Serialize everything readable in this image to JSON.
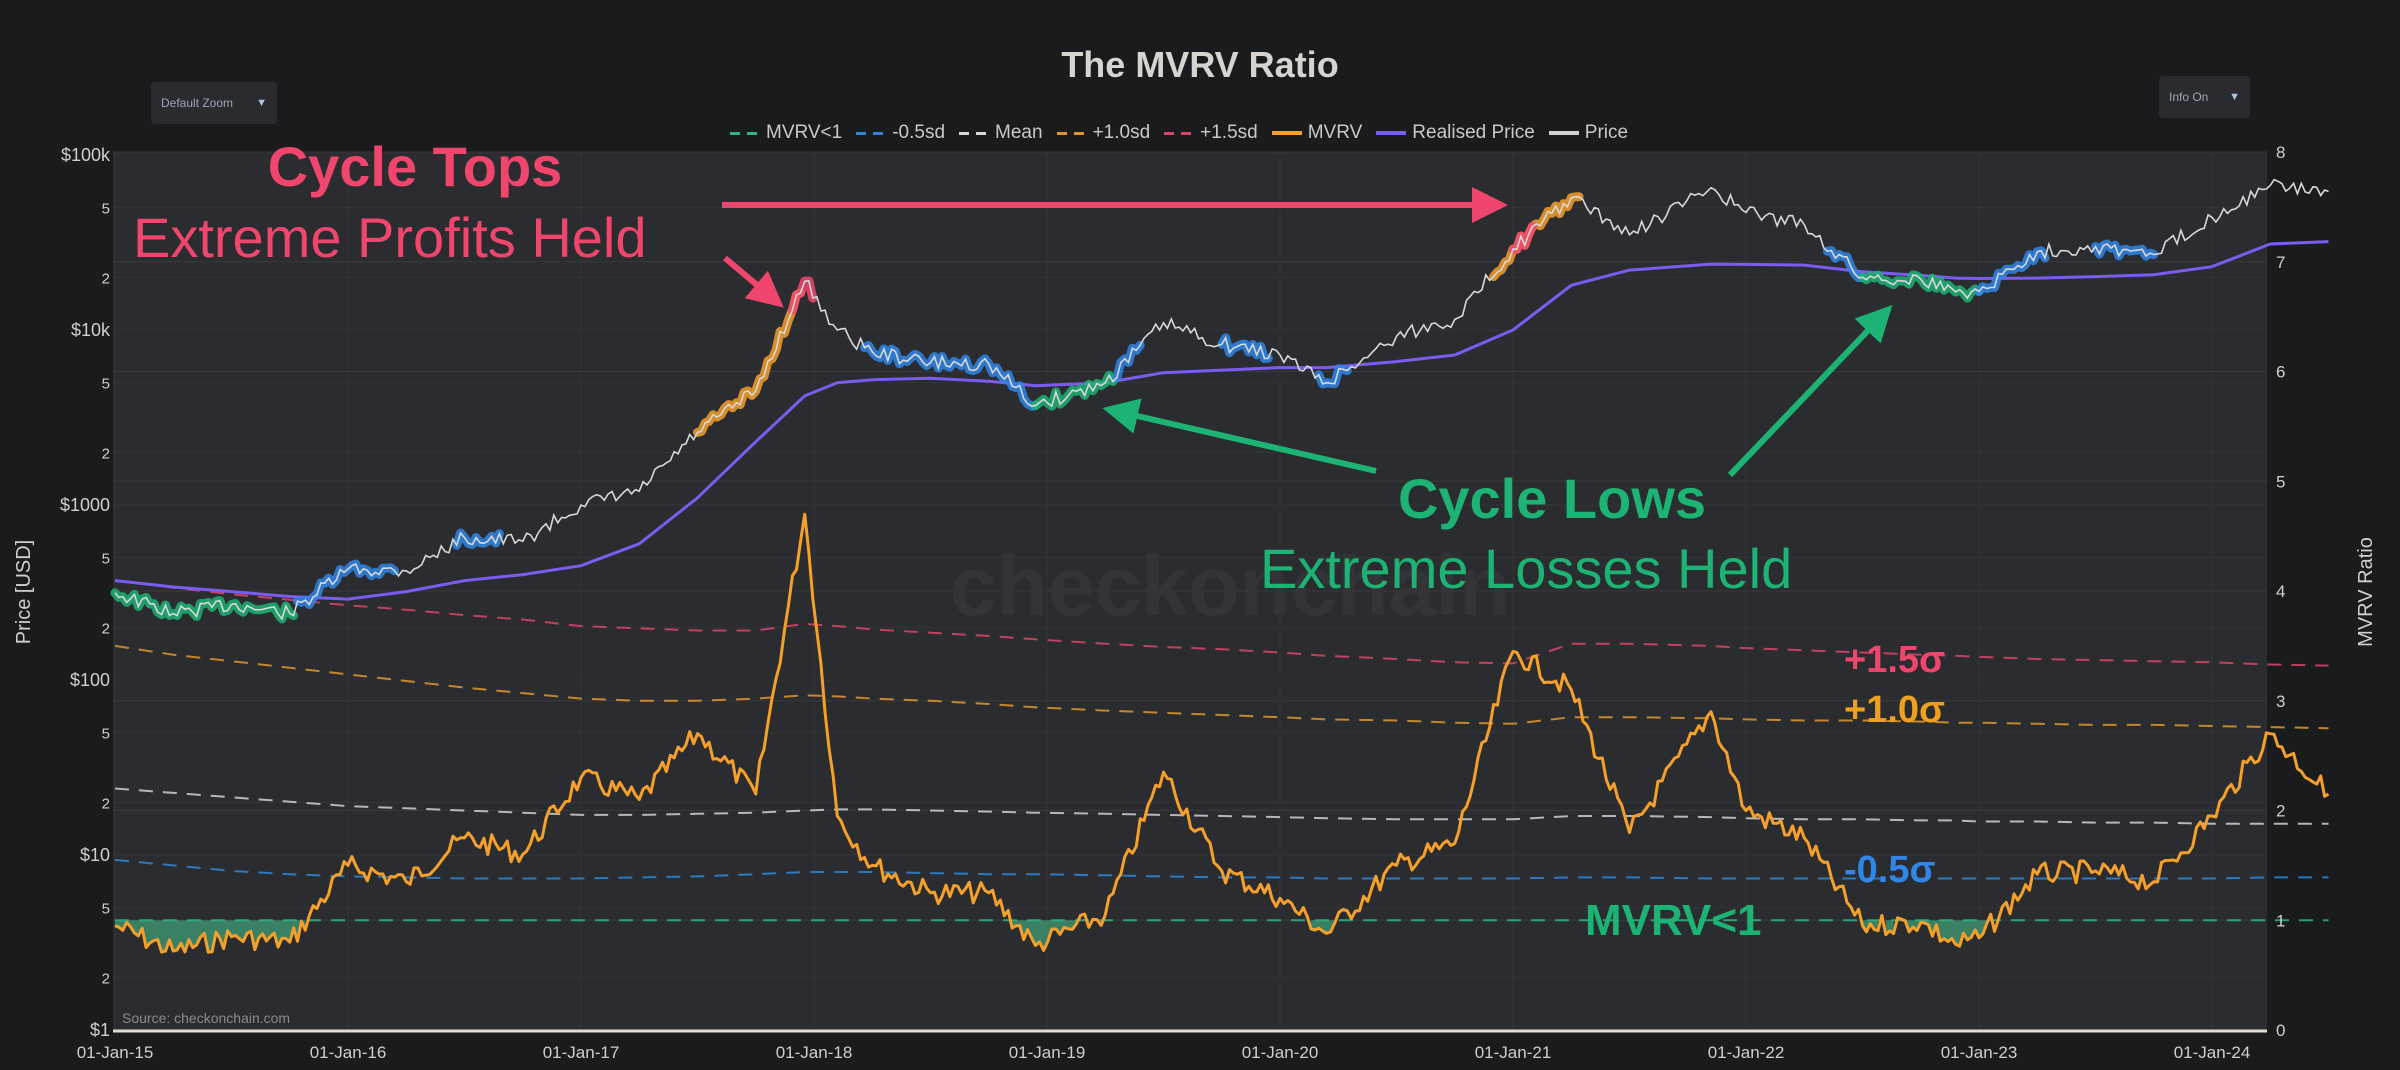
{
  "header": {
    "title": "The MVRV Ratio",
    "zoom_dropdown": {
      "label": "Default Zoom",
      "caret": "▼"
    },
    "info_dropdown": {
      "label": "Info On",
      "caret": "▼"
    }
  },
  "legend": [
    {
      "label": "MVRV<1",
      "style": "dash",
      "color": "#2fb582"
    },
    {
      "label": "-0.5sd",
      "style": "dash",
      "color": "#2f86d6"
    },
    {
      "label": "Mean",
      "style": "dash",
      "color": "#d8d8d8"
    },
    {
      "label": "+1.0sd",
      "style": "dash",
      "color": "#e0962e"
    },
    {
      "label": "+1.5sd",
      "style": "dash",
      "color": "#d9456b"
    },
    {
      "label": "MVRV",
      "style": "solid",
      "color": "#f5a02c"
    },
    {
      "label": "Realised Price",
      "style": "solid",
      "color": "#7b5cf0"
    },
    {
      "label": "Price",
      "style": "solid",
      "color": "#d0d0d0"
    }
  ],
  "annotations": {
    "cycle_tops": "Cycle Tops",
    "extreme_profits": "Extreme Profits Held",
    "cycle_lows": "Cycle Lows",
    "extreme_losses": "Extreme Losses Held",
    "band_plus_15": "+1.5σ",
    "band_plus_10": "+1.0σ",
    "band_minus_05": "-0.5σ",
    "band_mvrv_lt1": "MVRV<1",
    "watermark": "checkonchain",
    "source": "Source: checkonchain.com"
  },
  "colors": {
    "background": "#1a1b1d",
    "plot_bg": "#2b2c2f",
    "grid": "#38393c",
    "tops": "#f0466e",
    "lows": "#1db374",
    "mvrv": "#f5a02c",
    "realised": "#7b5cf0",
    "price": "#d8d8d8",
    "sd_plus15": "#d9456b",
    "sd_plus10": "#e0962e",
    "mean": "#d0d0d0",
    "sd_minus05": "#2f86d6",
    "mvrv_lt1": "#2fb582"
  },
  "chart_data": {
    "type": "line",
    "title": "The MVRV Ratio",
    "xlabel": "",
    "ylabel_left": "Price [USD]",
    "ylabel_right": "MVRV Ratio",
    "x_ticks": [
      "01-Jan-15",
      "01-Jan-16",
      "01-Jan-17",
      "01-Jan-18",
      "01-Jan-19",
      "01-Jan-20",
      "01-Jan-21",
      "01-Jan-22",
      "01-Jan-23",
      "01-Jan-24"
    ],
    "y_left_ticks": [
      "$1",
      "2",
      "5",
      "$10",
      "2",
      "5",
      "$100",
      "2",
      "5",
      "$1000",
      "2",
      "5",
      "$10k",
      "2",
      "5",
      "$100k"
    ],
    "y_left_scale": "log",
    "y_left_range": [
      1,
      100000
    ],
    "y_right_ticks": [
      "0",
      "1",
      "2",
      "3",
      "4",
      "5",
      "6",
      "7",
      "8"
    ],
    "y_right_range": [
      0,
      8
    ],
    "grid": true,
    "legend_position": "top",
    "x": [
      2015.0,
      2015.25,
      2015.5,
      2015.75,
      2016.0,
      2016.25,
      2016.5,
      2016.75,
      2017.0,
      2017.25,
      2017.5,
      2017.75,
      2017.96,
      2018.1,
      2018.25,
      2018.5,
      2018.75,
      2018.95,
      2019.25,
      2019.5,
      2019.75,
      2020.0,
      2020.2,
      2020.5,
      2020.75,
      2021.0,
      2021.25,
      2021.5,
      2021.85,
      2022.0,
      2022.25,
      2022.5,
      2022.75,
      2022.9,
      2023.0,
      2023.25,
      2023.5,
      2023.75,
      2024.0,
      2024.25,
      2024.5
    ],
    "series": [
      {
        "name": "Price",
        "axis": "left",
        "values": [
          315,
          240,
          270,
          240,
          430,
          420,
          650,
          620,
          1000,
          1200,
          2600,
          4500,
          19000,
          10000,
          7500,
          6500,
          6400,
          3700,
          5000,
          11000,
          8300,
          7200,
          5000,
          9200,
          11500,
          29000,
          57000,
          35000,
          65000,
          47000,
          40000,
          20000,
          19500,
          16500,
          16600,
          28000,
          30000,
          27000,
          44000,
          67000,
          62000
        ]
      },
      {
        "name": "Realised Price",
        "axis": "left",
        "values": [
          370,
          340,
          320,
          300,
          290,
          320,
          370,
          400,
          450,
          600,
          1100,
          2300,
          4200,
          5000,
          5200,
          5300,
          5100,
          4800,
          5000,
          5700,
          5900,
          6100,
          6100,
          6600,
          7200,
          10000,
          18000,
          22000,
          23800,
          23700,
          23500,
          21500,
          20500,
          19800,
          19700,
          19800,
          20200,
          20700,
          23000,
          31000,
          32000
        ]
      },
      {
        "name": "MVRV",
        "axis": "right",
        "values": [
          0.95,
          0.72,
          0.85,
          0.8,
          1.5,
          1.35,
          1.75,
          1.6,
          2.3,
          2.1,
          2.7,
          2.15,
          4.7,
          1.95,
          1.5,
          1.25,
          1.25,
          0.77,
          1.05,
          2.35,
          1.45,
          1.2,
          0.88,
          1.5,
          1.7,
          3.45,
          3.1,
          1.8,
          2.9,
          2.0,
          1.75,
          0.95,
          0.98,
          0.78,
          0.84,
          1.42,
          1.45,
          1.35,
          1.95,
          2.7,
          2.15
        ]
      },
      {
        "name": "+1.5sd",
        "axis": "right",
        "style": "dash",
        "values": [
          4.1,
          4.03,
          3.97,
          3.92,
          3.87,
          3.83,
          3.78,
          3.74,
          3.68,
          3.66,
          3.64,
          3.64,
          3.7,
          3.68,
          3.65,
          3.62,
          3.59,
          3.56,
          3.52,
          3.49,
          3.47,
          3.44,
          3.41,
          3.38,
          3.35,
          3.34,
          3.52,
          3.52,
          3.5,
          3.48,
          3.46,
          3.44,
          3.42,
          3.41,
          3.4,
          3.38,
          3.37,
          3.36,
          3.35,
          3.33,
          3.32
        ]
      },
      {
        "name": "+1.0sd",
        "axis": "right",
        "style": "dash",
        "values": [
          3.5,
          3.42,
          3.36,
          3.3,
          3.24,
          3.18,
          3.12,
          3.07,
          3.02,
          3.0,
          3.0,
          3.02,
          3.05,
          3.04,
          3.02,
          3.0,
          2.97,
          2.94,
          2.91,
          2.89,
          2.87,
          2.85,
          2.83,
          2.82,
          2.8,
          2.79,
          2.85,
          2.85,
          2.84,
          2.83,
          2.82,
          2.82,
          2.81,
          2.8,
          2.8,
          2.79,
          2.78,
          2.78,
          2.77,
          2.76,
          2.75
        ]
      },
      {
        "name": "Mean",
        "axis": "right",
        "style": "dash",
        "values": [
          2.2,
          2.16,
          2.12,
          2.08,
          2.04,
          2.02,
          2.0,
          1.98,
          1.96,
          1.96,
          1.97,
          1.98,
          2.0,
          2.01,
          2.01,
          2.0,
          1.99,
          1.98,
          1.97,
          1.96,
          1.95,
          1.94,
          1.93,
          1.92,
          1.92,
          1.92,
          1.95,
          1.95,
          1.94,
          1.93,
          1.92,
          1.92,
          1.91,
          1.91,
          1.9,
          1.9,
          1.89,
          1.89,
          1.88,
          1.88,
          1.88
        ]
      },
      {
        "name": "-0.5sd",
        "axis": "right",
        "style": "dash",
        "values": [
          1.55,
          1.5,
          1.45,
          1.42,
          1.4,
          1.39,
          1.38,
          1.38,
          1.38,
          1.39,
          1.4,
          1.42,
          1.44,
          1.44,
          1.44,
          1.43,
          1.42,
          1.42,
          1.41,
          1.4,
          1.39,
          1.39,
          1.38,
          1.38,
          1.38,
          1.38,
          1.39,
          1.39,
          1.38,
          1.38,
          1.38,
          1.38,
          1.38,
          1.38,
          1.38,
          1.38,
          1.38,
          1.38,
          1.38,
          1.39,
          1.39
        ]
      },
      {
        "name": "MVRV<1",
        "axis": "right",
        "style": "dash",
        "values": [
          1,
          1,
          1,
          1,
          1,
          1,
          1,
          1,
          1,
          1,
          1,
          1,
          1,
          1,
          1,
          1,
          1,
          1,
          1,
          1,
          1,
          1,
          1,
          1,
          1,
          1,
          1,
          1,
          1,
          1,
          1,
          1,
          1,
          1,
          1,
          1,
          1,
          1,
          1,
          1,
          1
        ]
      }
    ]
  }
}
